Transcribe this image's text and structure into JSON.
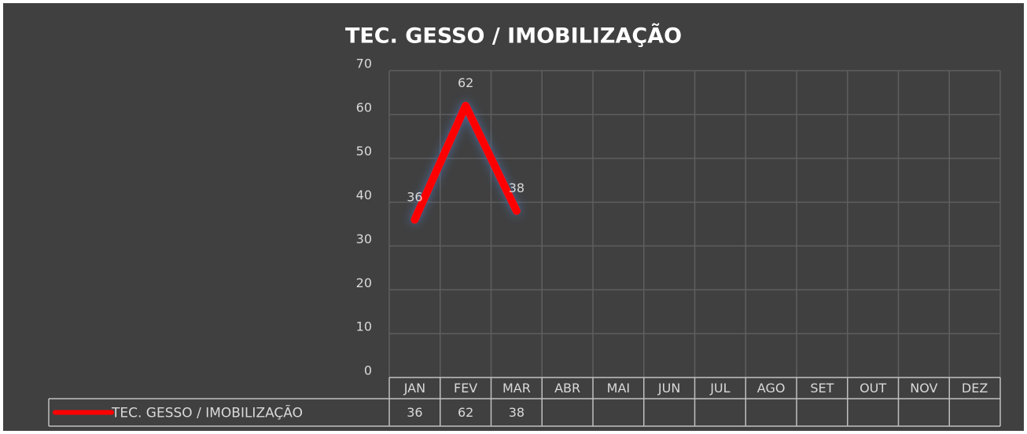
{
  "chart_data": {
    "type": "line",
    "title": "TEC. GESSO / IMOBILIZAÇÃO",
    "categories": [
      "JAN",
      "FEV",
      "MAR",
      "ABR",
      "MAI",
      "JUN",
      "JUL",
      "AGO",
      "SET",
      "OUT",
      "NOV",
      "DEZ"
    ],
    "series": [
      {
        "name": "TEC. GESSO / IMOBILIZAÇÃO",
        "color": "#ff0000",
        "values": [
          36,
          62,
          38,
          null,
          null,
          null,
          null,
          null,
          null,
          null,
          null,
          null
        ]
      }
    ],
    "ylim": [
      0,
      70
    ],
    "yticks": [
      0,
      10,
      20,
      30,
      40,
      50,
      60,
      70
    ],
    "grid": true,
    "data_table": true
  }
}
